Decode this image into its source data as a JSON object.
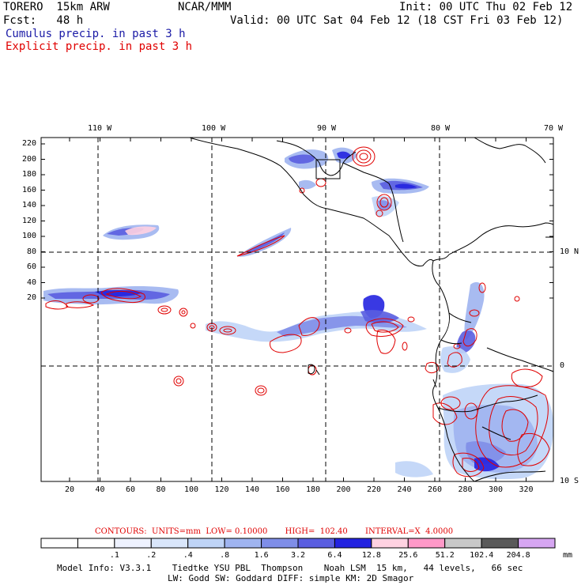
{
  "header": {
    "model": "TORERO  15km ARW",
    "org": "NCAR/MMM",
    "init": "Init: 00 UTC Thu 02 Feb 12",
    "fcst": "Fcst:   48 h",
    "valid": "Valid: 00 UTC Sat 04 Feb 12 (18 CST Fri 03 Feb 12)",
    "cumulus": "Cumulus precip. in past 3 h",
    "explicit": "Explicit precip. in past 3 h"
  },
  "colors": {
    "cumulus_text": "#1a1aa6",
    "explicit_contour": "#e00000",
    "coast": "#000000"
  },
  "map": {
    "top_lon_labels": [
      "110 W",
      "100 W",
      "90 W",
      "80 W",
      "70 W"
    ],
    "right_lat_labels": [
      "10 N",
      "0",
      "10 S"
    ],
    "x_grid_ticks": [
      "20",
      "40",
      "60",
      "80",
      "100",
      "120",
      "140",
      "160",
      "180",
      "200",
      "220",
      "240",
      "260",
      "280",
      "300",
      "320"
    ],
    "y_grid_ticks": [
      "220",
      "200",
      "180",
      "160",
      "140",
      "120",
      "100",
      "80",
      "60",
      "40",
      "20"
    ]
  },
  "colorbar": {
    "note": "CONTOURS:  UNITS=mm  LOW= 0.10000       HIGH=  102.40       INTERVAL=X  4.0000",
    "colors": [
      "#ffffff",
      "#ffffff",
      "#eef2ff",
      "#d9e6fb",
      "#bfd4f7",
      "#9fb4f0",
      "#7f8ee8",
      "#5a5ee0",
      "#2323e0",
      "#ffd2e1",
      "#ff99c8",
      "#c8c8c8",
      "#5a5a5a",
      "#d6a6f2"
    ],
    "labels": [
      ".1",
      ".2",
      ".4",
      ".8",
      "1.6",
      "3.2",
      "6.4",
      "12.8",
      "25.6",
      "51.2",
      "102.4",
      "204.8"
    ],
    "units": "mm"
  },
  "footer": {
    "line1": "Model Info: V3.3.1    Tiedtke YSU PBL  Thompson    Noah LSM  15 km,   44 levels,   66 sec",
    "line2": "LW: Godd SW: Goddard DIFF: simple KM: 2D Smagor"
  }
}
